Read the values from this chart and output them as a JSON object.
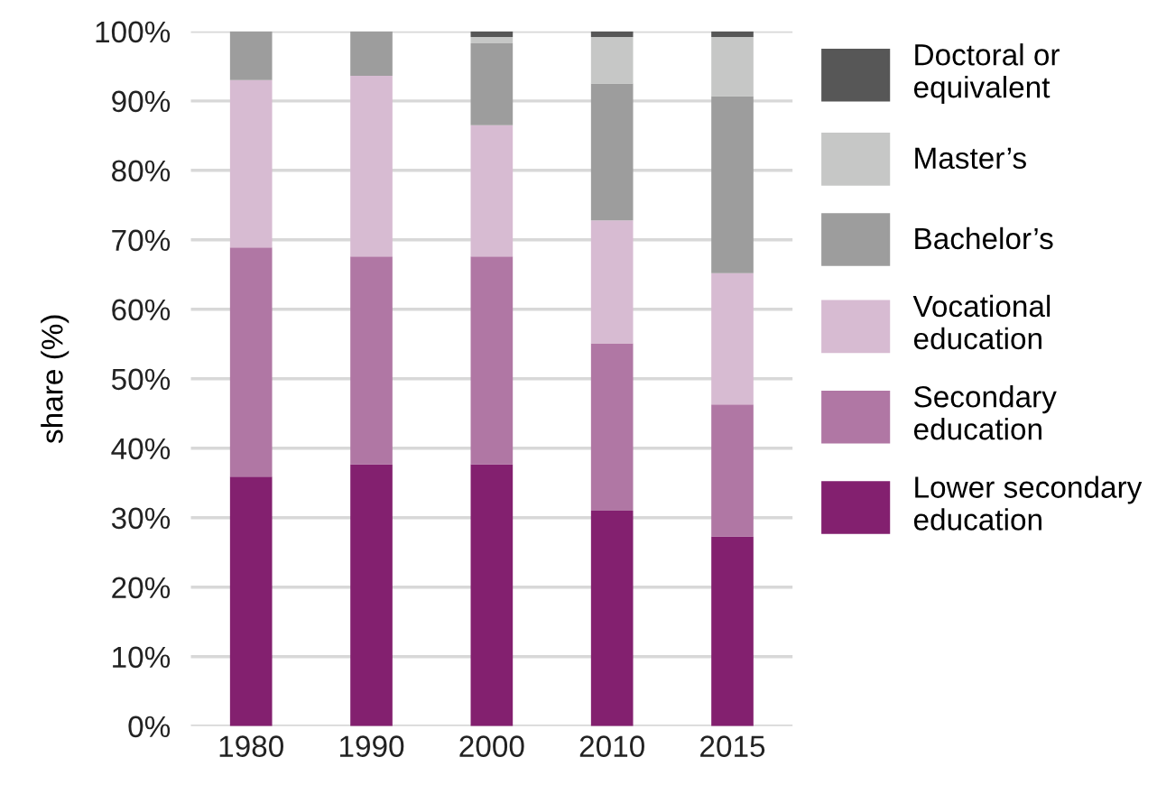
{
  "chart_data": {
    "type": "bar",
    "stacked": true,
    "ylabel": "share (%)",
    "categories": [
      "1980",
      "1990",
      "2000",
      "2010",
      "2015"
    ],
    "series": [
      {
        "name": "Lower secondary education",
        "color": "#83206f",
        "values": [
          35.9,
          37.7,
          37.7,
          31.0,
          27.3
        ]
      },
      {
        "name": "Secondary education",
        "color": "#b077a4",
        "values": [
          33.0,
          29.9,
          29.9,
          24.1,
          19.0
        ]
      },
      {
        "name": "Vocational education",
        "color": "#d7bbd2",
        "values": [
          24.1,
          26.0,
          18.9,
          17.7,
          18.9
        ]
      },
      {
        "name": "Bachelor’s",
        "color": "#9d9d9d",
        "values": [
          7.0,
          6.4,
          11.8,
          19.7,
          25.5
        ]
      },
      {
        "name": "Master’s",
        "color": "#c6c7c6",
        "values": [
          0,
          0,
          0.9,
          6.7,
          8.5
        ]
      },
      {
        "name": "Doctoral or equivalent",
        "color": "#575757",
        "values": [
          0,
          0,
          0.8,
          0.8,
          0.8
        ]
      }
    ],
    "ylim": [
      0,
      100
    ],
    "yticks": [
      {
        "value": 0,
        "label": "0%"
      },
      {
        "value": 10,
        "label": "10%"
      },
      {
        "value": 20,
        "label": "20%"
      },
      {
        "value": 30,
        "label": "30%"
      },
      {
        "value": 40,
        "label": "40%"
      },
      {
        "value": 50,
        "label": "50%"
      },
      {
        "value": 60,
        "label": "60%"
      },
      {
        "value": 70,
        "label": "70%"
      },
      {
        "value": 80,
        "label": "80%"
      },
      {
        "value": 90,
        "label": "90%"
      },
      {
        "value": 100,
        "label": "100%"
      }
    ],
    "grid": "y",
    "legend": "right"
  }
}
